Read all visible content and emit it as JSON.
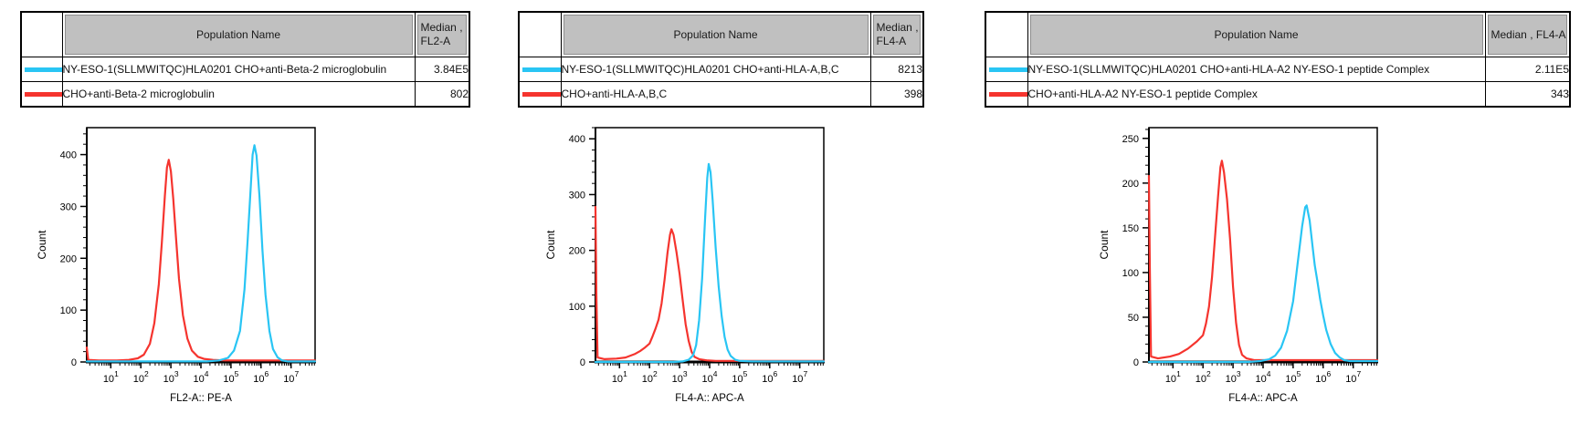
{
  "colors": {
    "cyan": "#29c5f4",
    "red": "#f5342e",
    "header_bg": "#c0c0c0",
    "axis": "#000000"
  },
  "panels": [
    {
      "table": {
        "header": {
          "population": "Population Name",
          "median_lines": [
            "Median ,",
            "FL2-A"
          ]
        },
        "rows": [
          {
            "color_key": "cyan",
            "name": "NY-ESO-1(SLLMWITQC)HLA0201 CHO+anti-Beta-2 microglobulin",
            "median": "3.84E5"
          },
          {
            "color_key": "red",
            "name": "CHO+anti-Beta-2 microglobulin",
            "median": "802"
          }
        ]
      }
    },
    {
      "table": {
        "header": {
          "population": "Population Name",
          "median_lines": [
            "Median ,",
            "FL4-A"
          ]
        },
        "rows": [
          {
            "color_key": "cyan",
            "name": "NY-ESO-1(SLLMWITQC)HLA0201 CHO+anti-HLA-A,B,C",
            "median": "8213"
          },
          {
            "color_key": "red",
            "name": "CHO+anti-HLA-A,B,C",
            "median": "398"
          }
        ]
      }
    },
    {
      "table": {
        "header": {
          "population": "Population Name",
          "median_lines": [
            "Median , FL4-A"
          ]
        },
        "rows": [
          {
            "color_key": "cyan",
            "name": "NY-ESO-1(SLLMWITQC)HLA0201 CHO+anti-HLA-A2 NY-ESO-1 peptide Complex",
            "median": "2.11E5"
          },
          {
            "color_key": "red",
            "name": "CHO+anti-HLA-A2 NY-ESO-1 peptide Complex",
            "median": "343"
          }
        ]
      }
    }
  ],
  "chart_data": [
    {
      "type": "line",
      "title": "",
      "xlabel": "FL2-A:: PE-A",
      "ylabel": "Count",
      "x_scale": "log10",
      "xlim_log": [
        0.2,
        7.8
      ],
      "x_decades": [
        1,
        2,
        3,
        4,
        5,
        6,
        7
      ],
      "ylim": [
        0,
        452
      ],
      "yticks": [
        0,
        100,
        200,
        300,
        400
      ],
      "y_minor_step": 20,
      "legend_position": "none",
      "grid": false,
      "series": [
        {
          "name": "CHO+anti-Beta-2 microglobulin",
          "color_key": "red",
          "median": 802,
          "points_logx_count": [
            [
              0.2,
              28
            ],
            [
              0.25,
              4
            ],
            [
              0.6,
              3
            ],
            [
              1.2,
              3
            ],
            [
              1.6,
              4
            ],
            [
              1.9,
              7
            ],
            [
              2.1,
              14
            ],
            [
              2.3,
              35
            ],
            [
              2.45,
              75
            ],
            [
              2.6,
              150
            ],
            [
              2.7,
              230
            ],
            [
              2.8,
              320
            ],
            [
              2.87,
              375
            ],
            [
              2.93,
              390
            ],
            [
              3.0,
              368
            ],
            [
              3.08,
              315
            ],
            [
              3.17,
              240
            ],
            [
              3.27,
              160
            ],
            [
              3.4,
              90
            ],
            [
              3.55,
              45
            ],
            [
              3.7,
              22
            ],
            [
              3.9,
              10
            ],
            [
              4.1,
              6
            ],
            [
              4.4,
              4
            ],
            [
              4.8,
              3
            ],
            [
              5.5,
              3
            ],
            [
              6.5,
              3
            ],
            [
              7.8,
              3
            ]
          ]
        },
        {
          "name": "NY-ESO-1(SLLMWITQC)HLA0201 CHO+anti-Beta-2 microglobulin",
          "color_key": "cyan",
          "median": 384000,
          "points_logx_count": [
            [
              0.2,
              1
            ],
            [
              3.0,
              1
            ],
            [
              4.2,
              1
            ],
            [
              4.6,
              3
            ],
            [
              4.9,
              8
            ],
            [
              5.1,
              22
            ],
            [
              5.3,
              60
            ],
            [
              5.45,
              140
            ],
            [
              5.55,
              230
            ],
            [
              5.65,
              330
            ],
            [
              5.72,
              400
            ],
            [
              5.78,
              418
            ],
            [
              5.85,
              398
            ],
            [
              5.95,
              320
            ],
            [
              6.05,
              215
            ],
            [
              6.15,
              130
            ],
            [
              6.28,
              60
            ],
            [
              6.4,
              25
            ],
            [
              6.55,
              9
            ],
            [
              6.7,
              3
            ],
            [
              6.9,
              1
            ],
            [
              7.8,
              1
            ]
          ]
        }
      ]
    },
    {
      "type": "line",
      "title": "",
      "xlabel": "FL4-A:: APC-A",
      "ylabel": "Count",
      "x_scale": "log10",
      "xlim_log": [
        0.2,
        7.8
      ],
      "x_decades": [
        1,
        2,
        3,
        4,
        5,
        6,
        7
      ],
      "ylim": [
        0,
        420
      ],
      "yticks": [
        0,
        100,
        200,
        300,
        400
      ],
      "y_minor_step": 20,
      "legend_position": "none",
      "grid": false,
      "series": [
        {
          "name": "CHO+anti-HLA-A,B,C",
          "color_key": "red",
          "median": 398,
          "points_logx_count": [
            [
              0.2,
              278
            ],
            [
              0.23,
              120
            ],
            [
              0.27,
              8
            ],
            [
              0.5,
              5
            ],
            [
              0.9,
              6
            ],
            [
              1.2,
              8
            ],
            [
              1.5,
              14
            ],
            [
              1.7,
              20
            ],
            [
              1.85,
              26
            ],
            [
              2.0,
              33
            ],
            [
              2.1,
              46
            ],
            [
              2.2,
              60
            ],
            [
              2.3,
              76
            ],
            [
              2.4,
              105
            ],
            [
              2.5,
              148
            ],
            [
              2.6,
              196
            ],
            [
              2.68,
              228
            ],
            [
              2.73,
              238
            ],
            [
              2.8,
              228
            ],
            [
              2.9,
              196
            ],
            [
              3.0,
              158
            ],
            [
              3.1,
              112
            ],
            [
              3.2,
              68
            ],
            [
              3.3,
              38
            ],
            [
              3.4,
              18
            ],
            [
              3.5,
              9
            ],
            [
              3.65,
              5
            ],
            [
              3.9,
              3
            ],
            [
              4.2,
              2
            ],
            [
              4.6,
              2
            ],
            [
              5.5,
              2
            ],
            [
              7.8,
              2
            ]
          ]
        },
        {
          "name": "NY-ESO-1(SLLMWITQC)HLA0201 CHO+anti-HLA-A,B,C",
          "color_key": "cyan",
          "median": 8213,
          "points_logx_count": [
            [
              0.2,
              0
            ],
            [
              2.8,
              0
            ],
            [
              3.1,
              1
            ],
            [
              3.3,
              4
            ],
            [
              3.45,
              12
            ],
            [
              3.55,
              30
            ],
            [
              3.65,
              75
            ],
            [
              3.75,
              150
            ],
            [
              3.85,
              260
            ],
            [
              3.92,
              330
            ],
            [
              3.97,
              355
            ],
            [
              4.03,
              340
            ],
            [
              4.1,
              290
            ],
            [
              4.2,
              205
            ],
            [
              4.3,
              135
            ],
            [
              4.4,
              82
            ],
            [
              4.5,
              45
            ],
            [
              4.6,
              22
            ],
            [
              4.7,
              11
            ],
            [
              4.85,
              4
            ],
            [
              5.0,
              2
            ],
            [
              5.4,
              1
            ],
            [
              7.8,
              1
            ]
          ]
        }
      ]
    },
    {
      "type": "line",
      "title": "",
      "xlabel": "FL4-A:: APC-A",
      "ylabel": "Count",
      "x_scale": "log10",
      "xlim_log": [
        0.2,
        7.8
      ],
      "x_decades": [
        1,
        2,
        3,
        4,
        5,
        6,
        7
      ],
      "ylim": [
        0,
        262
      ],
      "yticks": [
        0,
        50,
        100,
        150,
        200,
        250
      ],
      "y_minor_step": 10,
      "legend_position": "none",
      "grid": false,
      "series": [
        {
          "name": "CHO+anti-HLA-A2 NY-ESO-1 peptide Complex",
          "color_key": "red",
          "median": 343,
          "points_logx_count": [
            [
              0.2,
              208
            ],
            [
              0.23,
              105
            ],
            [
              0.27,
              6
            ],
            [
              0.5,
              4
            ],
            [
              0.9,
              6
            ],
            [
              1.2,
              9
            ],
            [
              1.5,
              15
            ],
            [
              1.8,
              23
            ],
            [
              2.0,
              30
            ],
            [
              2.1,
              43
            ],
            [
              2.2,
              62
            ],
            [
              2.3,
              95
            ],
            [
              2.4,
              140
            ],
            [
              2.5,
              185
            ],
            [
              2.58,
              218
            ],
            [
              2.63,
              225
            ],
            [
              2.7,
              212
            ],
            [
              2.8,
              182
            ],
            [
              2.9,
              138
            ],
            [
              3.0,
              84
            ],
            [
              3.1,
              44
            ],
            [
              3.2,
              19
            ],
            [
              3.3,
              8
            ],
            [
              3.45,
              4
            ],
            [
              3.7,
              2
            ],
            [
              4.2,
              2
            ],
            [
              5.0,
              2
            ],
            [
              7.8,
              2
            ]
          ]
        },
        {
          "name": "NY-ESO-1(SLLMWITQC)HLA0201 CHO+anti-HLA-A2 NY-ESO-1 peptide Complex",
          "color_key": "cyan",
          "median": 211000,
          "points_logx_count": [
            [
              0.2,
              0
            ],
            [
              3.5,
              0
            ],
            [
              3.9,
              1
            ],
            [
              4.2,
              3
            ],
            [
              4.4,
              7
            ],
            [
              4.6,
              16
            ],
            [
              4.8,
              35
            ],
            [
              5.0,
              68
            ],
            [
              5.15,
              110
            ],
            [
              5.3,
              152
            ],
            [
              5.4,
              173
            ],
            [
              5.45,
              175
            ],
            [
              5.55,
              158
            ],
            [
              5.65,
              128
            ],
            [
              5.72,
              108
            ],
            [
              5.8,
              92
            ],
            [
              5.9,
              70
            ],
            [
              6.0,
              52
            ],
            [
              6.1,
              36
            ],
            [
              6.25,
              20
            ],
            [
              6.4,
              10
            ],
            [
              6.55,
              5
            ],
            [
              6.7,
              2
            ],
            [
              6.9,
              1
            ],
            [
              7.8,
              1
            ]
          ]
        }
      ]
    }
  ]
}
